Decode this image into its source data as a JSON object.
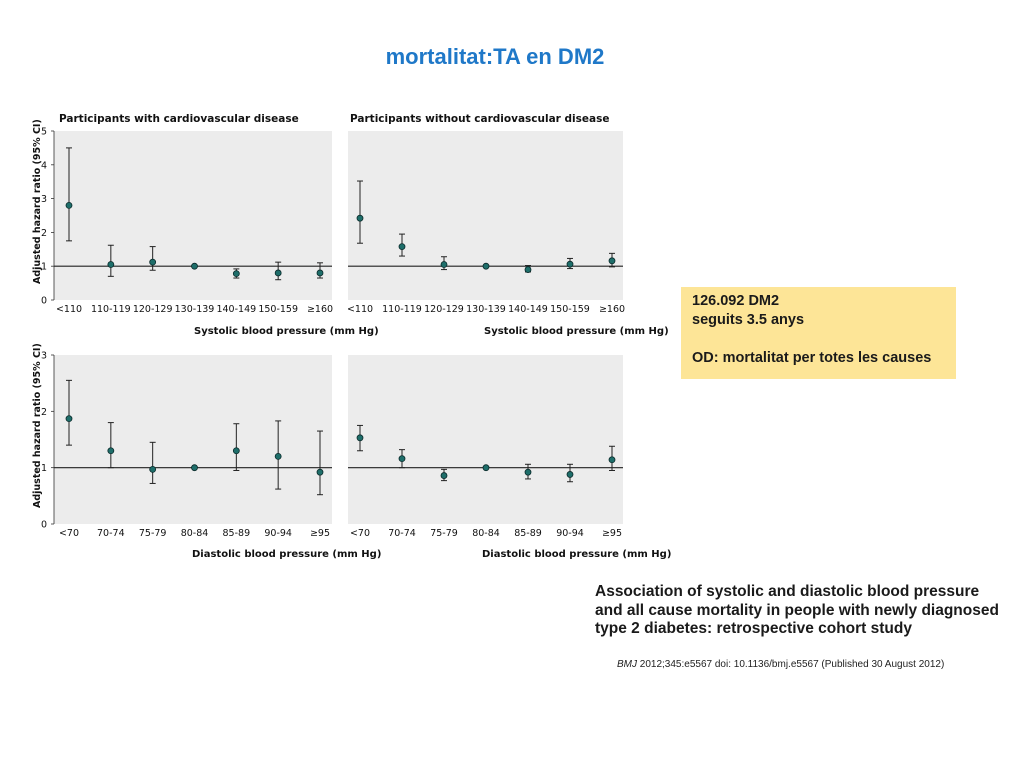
{
  "slide": {
    "title": "mortalitat:TA en DM2",
    "info_box": {
      "line1": "126.092 DM2",
      "line2": "seguits 3.5 anys",
      "line3": "",
      "line4": "OD: mortalitat per totes les causes"
    },
    "study_title": "Association of systolic and diastolic blood pressure and all cause mortality in people with newly diagnosed type 2 diabetes: retrospective cohort study",
    "citation": {
      "journal": "BMJ",
      "rest": " 2012;345:e5567 doi: 10.1136/bmj.e5567 (Published 30 August 2012)"
    }
  },
  "chart_data": [
    {
      "type": "scatter",
      "title": "Participants with cardiovascular disease",
      "ylabel": "Adjusted hazard ratio (95% CI)",
      "xlabel": "Systolic blood pressure (mm Hg)",
      "reference_line": 1,
      "ylim": [
        0,
        5
      ],
      "yticks": [
        "0",
        "1",
        "2",
        "3",
        "4",
        "5"
      ],
      "categories": [
        "<110",
        "110-119",
        "120-129",
        "130-139",
        "140-149",
        "150-159",
        "≥160"
      ],
      "values": [
        2.8,
        1.05,
        1.12,
        1.0,
        0.78,
        0.8,
        0.8
      ],
      "ci_low": [
        1.75,
        0.7,
        0.88,
        1.0,
        0.65,
        0.6,
        0.65
      ],
      "ci_high": [
        4.5,
        1.62,
        1.58,
        1.0,
        0.92,
        1.12,
        1.1
      ]
    },
    {
      "type": "scatter",
      "title": "Participants without cardiovascular disease",
      "ylabel": "",
      "xlabel": "Systolic blood pressure (mm Hg)",
      "reference_line": 1,
      "ylim": [
        0,
        5
      ],
      "yticks": [],
      "categories": [
        "<110",
        "110-119",
        "120-129",
        "130-139",
        "140-149",
        "150-159",
        "≥160"
      ],
      "values": [
        2.42,
        1.58,
        1.05,
        1.0,
        0.9,
        1.06,
        1.16
      ],
      "ci_low": [
        1.68,
        1.3,
        0.9,
        1.0,
        0.83,
        0.93,
        0.98
      ],
      "ci_high": [
        3.52,
        1.95,
        1.28,
        1.0,
        1.02,
        1.23,
        1.38
      ]
    },
    {
      "type": "scatter",
      "title": "",
      "ylabel": "Adjusted hazard ratio (95% CI)",
      "xlabel": "Diastolic blood pressure (mm Hg)",
      "reference_line": 1,
      "ylim": [
        0,
        3
      ],
      "yticks": [
        "0",
        "1",
        "2",
        "3"
      ],
      "categories": [
        "<70",
        "70-74",
        "75-79",
        "80-84",
        "85-89",
        "90-94",
        "≥95"
      ],
      "values": [
        1.87,
        1.3,
        0.97,
        1.0,
        1.3,
        1.2,
        0.92
      ],
      "ci_low": [
        1.4,
        1.0,
        0.72,
        1.0,
        0.95,
        0.62,
        0.52
      ],
      "ci_high": [
        2.55,
        1.8,
        1.45,
        1.0,
        1.78,
        1.83,
        1.65
      ]
    },
    {
      "type": "scatter",
      "title": "",
      "ylabel": "",
      "xlabel": "Diastolic blood pressure (mm Hg)",
      "reference_line": 1,
      "ylim": [
        0,
        3
      ],
      "yticks": [],
      "categories": [
        "<70",
        "70-74",
        "75-79",
        "80-84",
        "85-89",
        "90-94",
        "≥95"
      ],
      "values": [
        1.53,
        1.16,
        0.86,
        1.0,
        0.92,
        0.88,
        1.14
      ],
      "ci_low": [
        1.3,
        1.0,
        0.77,
        1.0,
        0.8,
        0.75,
        0.95
      ],
      "ci_high": [
        1.75,
        1.32,
        0.97,
        1.0,
        1.06,
        1.06,
        1.38
      ]
    }
  ]
}
